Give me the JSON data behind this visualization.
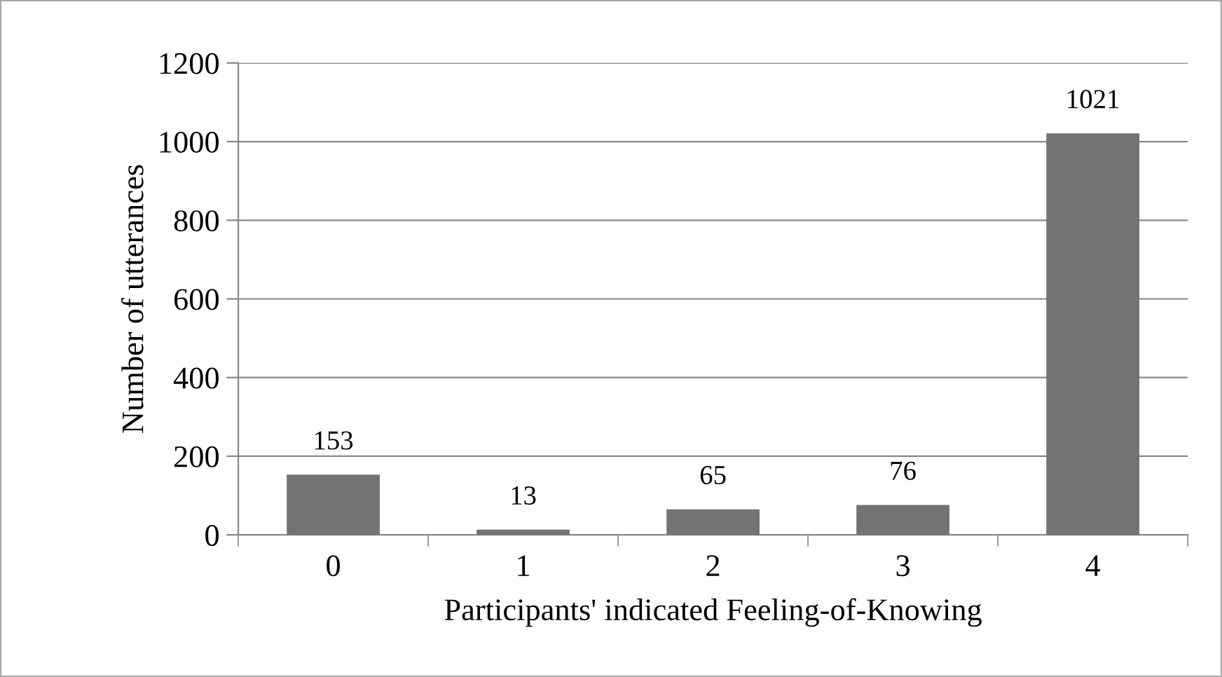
{
  "chart_data": {
    "type": "bar",
    "xlabel": "Participants' indicated Feeling-of-Knowing",
    "ylabel": "Number of utterances",
    "categories": [
      "0",
      "1",
      "2",
      "3",
      "4"
    ],
    "values": [
      153,
      13,
      65,
      76,
      1021
    ],
    "color": "#737373",
    "ylim": [
      0,
      1200
    ],
    "yticks": [
      0,
      200,
      400,
      600,
      800,
      1000,
      1200
    ],
    "grid": "y",
    "data_labels": true,
    "legend": false
  }
}
